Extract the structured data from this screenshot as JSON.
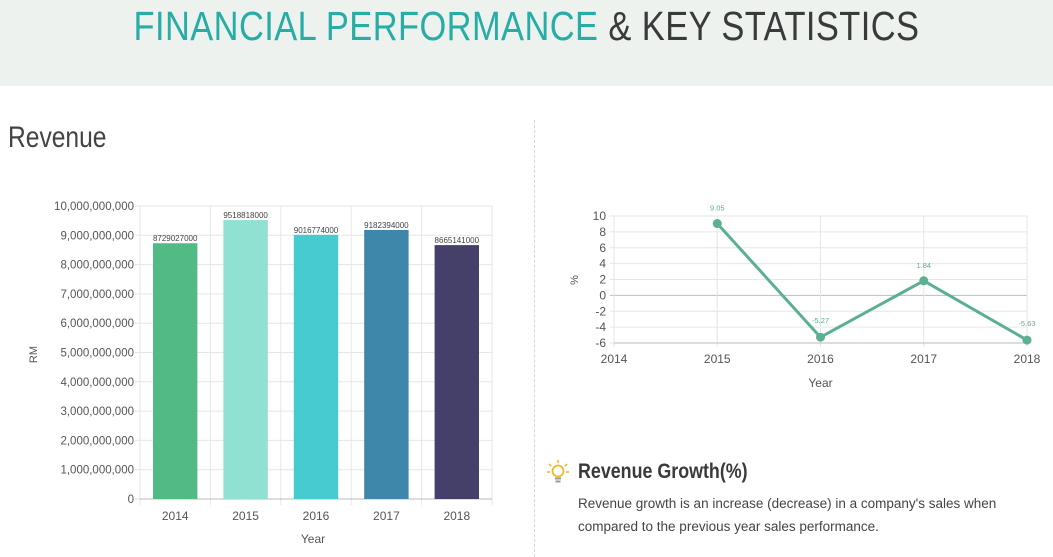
{
  "banner": {
    "title_accent": "FINANCIAL PERFORMANCE",
    "title_rest": "& KEY STATISTICS"
  },
  "revenue_section": {
    "title": "Revenue"
  },
  "growth_info": {
    "title": "Revenue Growth(%)",
    "description": "Revenue growth is an increase (decrease) in a company's sales when compared to the previous year sales performance.",
    "icon": "lightbulb-icon"
  },
  "chart_data": [
    {
      "type": "bar",
      "title": "Revenue",
      "categories": [
        "2014",
        "2015",
        "2016",
        "2017",
        "2018"
      ],
      "values": [
        8729027000,
        9518818000,
        9016774000,
        9182394000,
        8665141000
      ],
      "data_labels": [
        "8729027000",
        "9518818000",
        "9016774000",
        "9182394000",
        "8665141000"
      ],
      "colors": [
        "#52bb85",
        "#90e1d1",
        "#47cbd0",
        "#3f87aa",
        "#45406a"
      ],
      "xlabel": "Year",
      "ylabel": "RM",
      "ylim": [
        0,
        10000000000
      ],
      "yticks": [
        0,
        1000000000,
        2000000000,
        3000000000,
        4000000000,
        5000000000,
        6000000000,
        7000000000,
        8000000000,
        9000000000,
        10000000000
      ],
      "ytick_labels": [
        "0",
        "1,000,000,000",
        "2,000,000,000",
        "3,000,000,000",
        "4,000,000,000",
        "5,000,000,000",
        "6,000,000,000",
        "7,000,000,000",
        "8,000,000,000",
        "9,000,000,000",
        "10,000,000,000"
      ],
      "grid": true
    },
    {
      "type": "line",
      "title": "Revenue Growth(%)",
      "categories": [
        "2014",
        "2015",
        "2016",
        "2017",
        "2018"
      ],
      "values": [
        null,
        9.05,
        -5.27,
        1.84,
        -5.63
      ],
      "data_labels": [
        "",
        "9.05",
        "-5.27",
        "1.84",
        "-5.63"
      ],
      "color": "#5bb08f",
      "xlabel": "Year",
      "ylabel": "%",
      "ylim": [
        -6,
        10
      ],
      "yticks": [
        10,
        8,
        6,
        4,
        2,
        0,
        -2,
        -4,
        -6
      ],
      "grid": true
    }
  ]
}
